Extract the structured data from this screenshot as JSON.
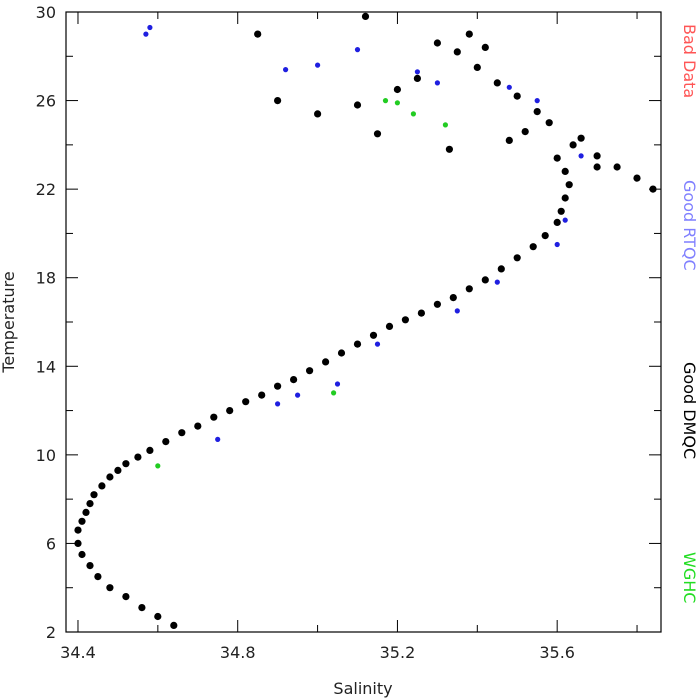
{
  "chart_data": {
    "type": "scatter",
    "xlabel": "Salinity",
    "ylabel": "Temperature",
    "xlim": [
      34.37,
      35.86
    ],
    "ylim": [
      2,
      30
    ],
    "xticks": [
      "34.4",
      "34.8",
      "35.2",
      "35.6"
    ],
    "yticks": [
      "2",
      "6",
      "10",
      "14",
      "18",
      "22",
      "26",
      "30"
    ],
    "legend": [
      {
        "label": "Bad Data",
        "color": "#ff5555"
      },
      {
        "label": "Good RTQC",
        "color": "#8080ff"
      },
      {
        "label": "Good DMQC",
        "color": "#000000"
      },
      {
        "label": "WGHC",
        "color": "#22dd22"
      }
    ],
    "series": [
      {
        "name": "Good DMQC",
        "color": "#000000",
        "x": [
          34.64,
          34.6,
          34.56,
          34.52,
          34.48,
          34.45,
          34.43,
          34.41,
          34.4,
          34.4,
          34.41,
          34.42,
          34.43,
          34.44,
          34.46,
          34.48,
          34.5,
          34.52,
          34.55,
          34.58,
          34.62,
          34.66,
          34.7,
          34.74,
          34.78,
          34.82,
          34.86,
          34.9,
          34.94,
          34.98,
          35.02,
          35.06,
          35.1,
          35.14,
          35.18,
          35.22,
          35.26,
          35.3,
          35.34,
          35.38,
          35.42,
          35.46,
          35.5,
          35.54,
          35.57,
          35.6,
          35.61,
          35.62,
          35.63,
          35.62,
          35.6,
          35.64,
          35.7,
          35.75,
          35.8,
          35.84,
          35.55,
          35.5,
          35.45,
          35.4,
          35.35,
          35.3,
          35.25,
          35.2,
          35.1,
          35.0,
          34.9,
          34.85,
          35.38,
          35.42,
          35.33,
          35.48,
          35.52,
          35.58,
          35.66,
          35.7,
          35.12,
          35.15
        ],
        "y": [
          2.3,
          2.7,
          3.1,
          3.6,
          4.0,
          4.5,
          5.0,
          5.5,
          6.0,
          6.6,
          7.0,
          7.4,
          7.8,
          8.2,
          8.6,
          9.0,
          9.3,
          9.6,
          9.9,
          10.2,
          10.6,
          11.0,
          11.3,
          11.7,
          12.0,
          12.4,
          12.7,
          13.1,
          13.4,
          13.8,
          14.2,
          14.6,
          15.0,
          15.4,
          15.8,
          16.1,
          16.4,
          16.8,
          17.1,
          17.5,
          17.9,
          18.4,
          18.9,
          19.4,
          19.9,
          20.5,
          21.0,
          21.6,
          22.2,
          22.8,
          23.4,
          24.0,
          23.5,
          23.0,
          22.5,
          22.0,
          25.5,
          26.2,
          26.8,
          27.5,
          28.2,
          28.6,
          27.0,
          26.5,
          25.8,
          25.4,
          26.0,
          29.0,
          29.0,
          28.4,
          23.8,
          24.2,
          24.6,
          25.0,
          24.3,
          23.0,
          29.8,
          24.5
        ]
      },
      {
        "name": "Good RTQC",
        "color": "#1f1fe0",
        "x": [
          34.57,
          34.58,
          34.92,
          35.0,
          35.1,
          35.25,
          35.3,
          35.48,
          35.55,
          35.66,
          35.05,
          34.95,
          35.35,
          35.62,
          34.75,
          34.9,
          35.15,
          35.45,
          35.6
        ],
        "y": [
          29.0,
          29.3,
          27.4,
          27.6,
          28.3,
          27.3,
          26.8,
          26.6,
          26.0,
          23.5,
          13.2,
          12.7,
          16.5,
          20.6,
          10.7,
          12.3,
          15.0,
          17.8,
          19.5
        ]
      },
      {
        "name": "WGHC",
        "color": "#22cc22",
        "x": [
          35.17,
          35.2,
          35.24,
          35.32,
          35.04,
          34.6
        ],
        "y": [
          26.0,
          25.9,
          25.4,
          24.9,
          12.8,
          9.5
        ]
      }
    ]
  }
}
